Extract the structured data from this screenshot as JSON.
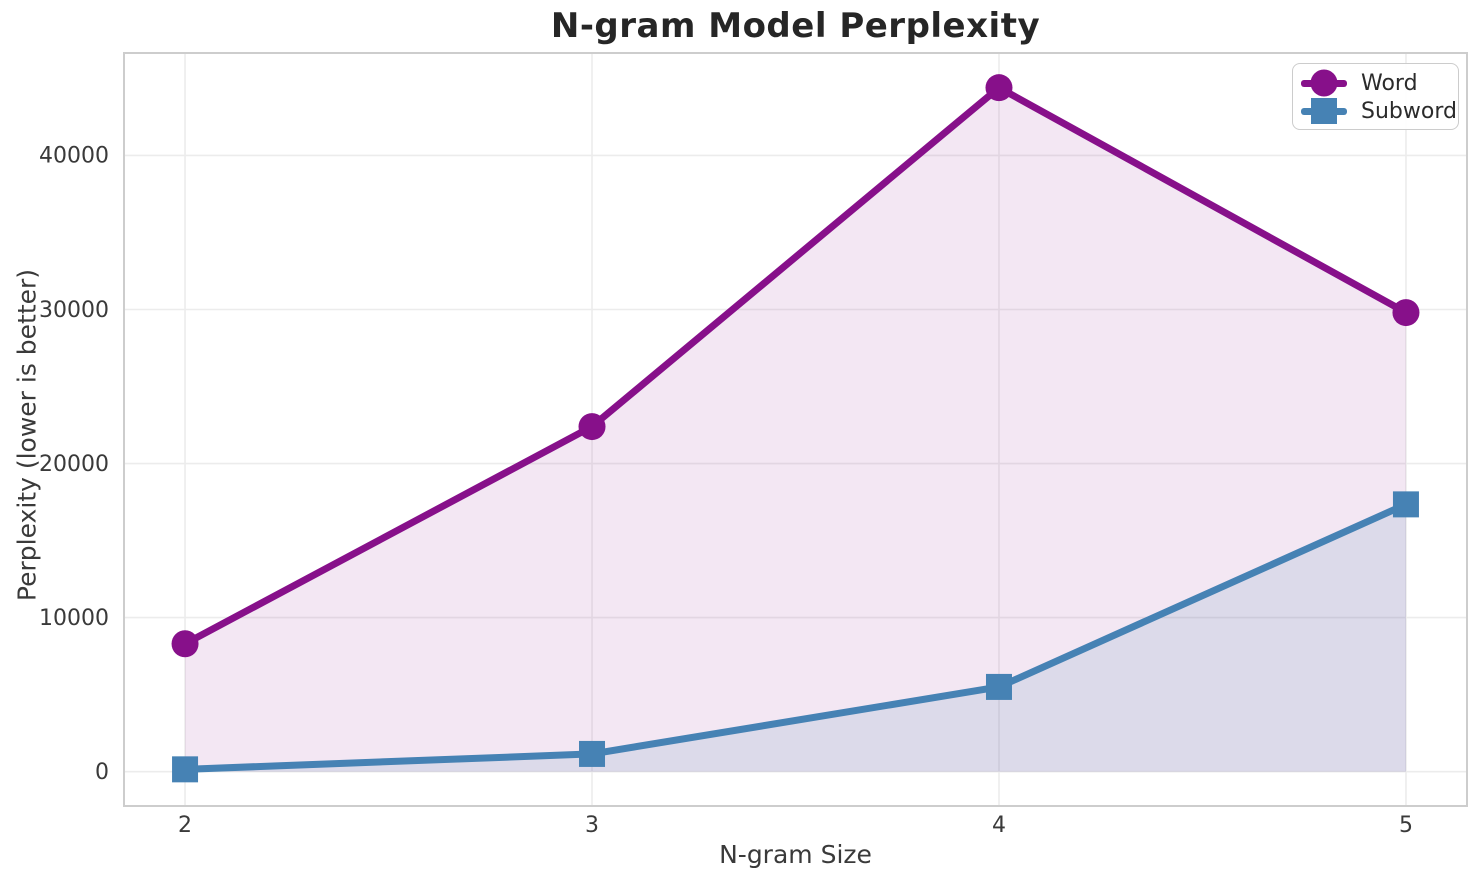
{
  "chart_data": {
    "type": "line",
    "title": "N-gram Model Perplexity",
    "xlabel": "N-gram Size",
    "ylabel": "Perplexity (lower is better)",
    "x": [
      2,
      3,
      4,
      5
    ],
    "series": [
      {
        "name": "Word",
        "marker": "circle",
        "color": "#87108a",
        "fill": "rgba(134,16,138,0.10)",
        "values": [
          8300,
          22400,
          44400,
          29800
        ]
      },
      {
        "name": "Subword",
        "marker": "square",
        "color": "#4682b4",
        "fill": "rgba(70,130,180,0.13)",
        "values": [
          150,
          1150,
          5500,
          17350
        ]
      }
    ],
    "xticks": [
      2,
      3,
      4,
      5
    ],
    "yticks": [
      0,
      10000,
      20000,
      30000,
      40000
    ],
    "xlim": [
      1.85,
      5.15
    ],
    "ylim": [
      -2230,
      46650
    ],
    "grid": true,
    "legend_position": "upper right"
  },
  "colors": {
    "grid": "#ececec",
    "spine": "#cdcdcd",
    "tick_label": "#3a3a3a",
    "title": "#262626",
    "background": "#ffffff"
  }
}
